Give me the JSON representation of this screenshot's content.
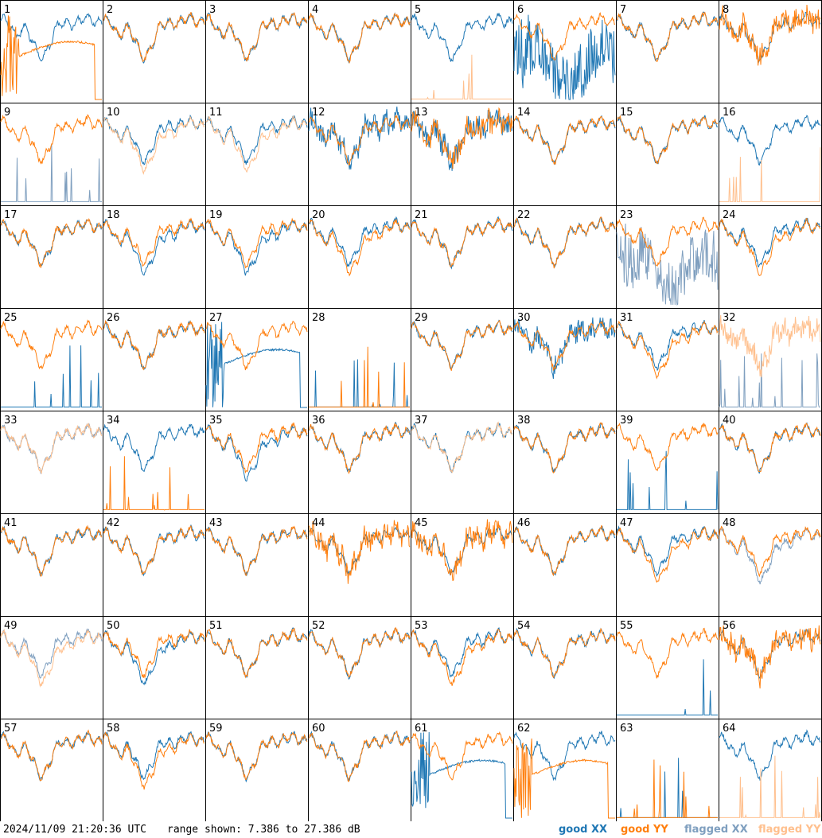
{
  "chart_data": {
    "type": "line",
    "panels": [
      {
        "label": "1",
        "xx": "good",
        "yy": "good",
        "xx_shape": "normal",
        "yy_shape": "spike_decay"
      },
      {
        "label": "2",
        "xx": "good",
        "yy": "good",
        "xx_shape": "normal",
        "yy_shape": "normal"
      },
      {
        "label": "3",
        "xx": "good",
        "yy": "good",
        "xx_shape": "normal",
        "yy_shape": "normal"
      },
      {
        "label": "4",
        "xx": "good",
        "yy": "good",
        "xx_shape": "normal",
        "yy_shape": "normal"
      },
      {
        "label": "5",
        "xx": "good",
        "yy": "flagged",
        "xx_shape": "normal",
        "yy_shape": "bottom_spikes"
      },
      {
        "label": "6",
        "xx": "good",
        "yy": "good",
        "xx_shape": "noisy_low",
        "yy_shape": "normal"
      },
      {
        "label": "7",
        "xx": "good",
        "yy": "good",
        "xx_shape": "normal",
        "yy_shape": "normal"
      },
      {
        "label": "8",
        "xx": "good",
        "yy": "good",
        "xx_shape": "normal",
        "yy_shape": "noisy"
      },
      {
        "label": "9",
        "xx": "flagged",
        "yy": "good",
        "xx_shape": "bottom_spikes",
        "yy_shape": "normal"
      },
      {
        "label": "10",
        "xx": "good",
        "yy": "flagged",
        "xx_shape": "normal",
        "yy_shape": "low"
      },
      {
        "label": "11",
        "xx": "good",
        "yy": "flagged",
        "xx_shape": "normal",
        "yy_shape": "low"
      },
      {
        "label": "12",
        "xx": "good",
        "yy": "good",
        "xx_shape": "noisy",
        "yy_shape": "normal"
      },
      {
        "label": "13",
        "xx": "good",
        "yy": "good",
        "xx_shape": "noisy",
        "yy_shape": "noisy"
      },
      {
        "label": "14",
        "xx": "good",
        "yy": "good",
        "xx_shape": "normal",
        "yy_shape": "normal"
      },
      {
        "label": "15",
        "xx": "good",
        "yy": "good",
        "xx_shape": "normal",
        "yy_shape": "normal"
      },
      {
        "label": "16",
        "xx": "good",
        "yy": "flagged",
        "xx_shape": "normal",
        "yy_shape": "bottom_spikes"
      },
      {
        "label": "17",
        "xx": "good",
        "yy": "good",
        "xx_shape": "normal",
        "yy_shape": "normal"
      },
      {
        "label": "18",
        "xx": "good",
        "yy": "good",
        "xx_shape": "low",
        "yy_shape": "normal"
      },
      {
        "label": "19",
        "xx": "good",
        "yy": "good",
        "xx_shape": "low",
        "yy_shape": "normal"
      },
      {
        "label": "20",
        "xx": "good",
        "yy": "good",
        "xx_shape": "normal",
        "yy_shape": "low"
      },
      {
        "label": "21",
        "xx": "good",
        "yy": "good",
        "xx_shape": "normal",
        "yy_shape": "normal"
      },
      {
        "label": "22",
        "xx": "good",
        "yy": "good",
        "xx_shape": "normal",
        "yy_shape": "normal"
      },
      {
        "label": "23",
        "xx": "flagged",
        "yy": "good",
        "xx_shape": "noisy_low",
        "yy_shape": "normal"
      },
      {
        "label": "24",
        "xx": "good",
        "yy": "good",
        "xx_shape": "normal",
        "yy_shape": "low"
      },
      {
        "label": "25",
        "xx": "good",
        "yy": "good",
        "xx_shape": "bottom_spikes",
        "yy_shape": "normal"
      },
      {
        "label": "26",
        "xx": "good",
        "yy": "good",
        "xx_shape": "normal",
        "yy_shape": "normal"
      },
      {
        "label": "27",
        "xx": "good",
        "yy": "good",
        "xx_shape": "spike_decay",
        "yy_shape": "normal"
      },
      {
        "label": "28",
        "xx": "good",
        "yy": "good",
        "xx_shape": "bottom_spikes",
        "yy_shape": "bottom_spikes"
      },
      {
        "label": "29",
        "xx": "good",
        "yy": "good",
        "xx_shape": "normal",
        "yy_shape": "normal"
      },
      {
        "label": "30",
        "xx": "good",
        "yy": "good",
        "xx_shape": "noisy",
        "yy_shape": "normal"
      },
      {
        "label": "31",
        "xx": "good",
        "yy": "good",
        "xx_shape": "normal",
        "yy_shape": "low"
      },
      {
        "label": "32",
        "xx": "flagged",
        "yy": "flagged",
        "xx_shape": "bottom_spikes",
        "yy_shape": "noisy"
      },
      {
        "label": "33",
        "xx": "flagged",
        "yy": "flagged",
        "xx_shape": "normal",
        "yy_shape": "normal"
      },
      {
        "label": "34",
        "xx": "good",
        "yy": "good",
        "xx_shape": "normal",
        "yy_shape": "bottom_spikes"
      },
      {
        "label": "35",
        "xx": "good",
        "yy": "good",
        "xx_shape": "low",
        "yy_shape": "normal"
      },
      {
        "label": "36",
        "xx": "good",
        "yy": "good",
        "xx_shape": "normal",
        "yy_shape": "normal"
      },
      {
        "label": "37",
        "xx": "good",
        "yy": "flagged",
        "xx_shape": "normal",
        "yy_shape": "normal"
      },
      {
        "label": "38",
        "xx": "good",
        "yy": "good",
        "xx_shape": "normal",
        "yy_shape": "normal"
      },
      {
        "label": "39",
        "xx": "good",
        "yy": "good",
        "xx_shape": "bottom_spikes",
        "yy_shape": "normal"
      },
      {
        "label": "40",
        "xx": "good",
        "yy": "good",
        "xx_shape": "normal",
        "yy_shape": "normal"
      },
      {
        "label": "41",
        "xx": "good",
        "yy": "good",
        "xx_shape": "normal",
        "yy_shape": "normal"
      },
      {
        "label": "42",
        "xx": "good",
        "yy": "good",
        "xx_shape": "normal",
        "yy_shape": "normal"
      },
      {
        "label": "43",
        "xx": "good",
        "yy": "good",
        "xx_shape": "normal",
        "yy_shape": "normal"
      },
      {
        "label": "44",
        "xx": "good",
        "yy": "good",
        "xx_shape": "normal",
        "yy_shape": "noisy"
      },
      {
        "label": "45",
        "xx": "good",
        "yy": "good",
        "xx_shape": "normal",
        "yy_shape": "noisy"
      },
      {
        "label": "46",
        "xx": "good",
        "yy": "good",
        "xx_shape": "normal",
        "yy_shape": "normal"
      },
      {
        "label": "47",
        "xx": "good",
        "yy": "good",
        "xx_shape": "normal",
        "yy_shape": "low"
      },
      {
        "label": "48",
        "xx": "flagged",
        "yy": "good",
        "xx_shape": "low",
        "yy_shape": "normal"
      },
      {
        "label": "49",
        "xx": "flagged",
        "yy": "flagged",
        "xx_shape": "normal",
        "yy_shape": "low"
      },
      {
        "label": "50",
        "xx": "good",
        "yy": "good",
        "xx_shape": "low",
        "yy_shape": "normal"
      },
      {
        "label": "51",
        "xx": "good",
        "yy": "good",
        "xx_shape": "normal",
        "yy_shape": "normal"
      },
      {
        "label": "52",
        "xx": "good",
        "yy": "good",
        "xx_shape": "normal",
        "yy_shape": "normal"
      },
      {
        "label": "53",
        "xx": "good",
        "yy": "good",
        "xx_shape": "normal",
        "yy_shape": "low"
      },
      {
        "label": "54",
        "xx": "good",
        "yy": "good",
        "xx_shape": "normal",
        "yy_shape": "normal"
      },
      {
        "label": "55",
        "xx": "good",
        "yy": "good",
        "xx_shape": "bottom_spikes",
        "yy_shape": "normal"
      },
      {
        "label": "56",
        "xx": "good",
        "yy": "good",
        "xx_shape": "normal",
        "yy_shape": "noisy"
      },
      {
        "label": "57",
        "xx": "good",
        "yy": "good",
        "xx_shape": "normal",
        "yy_shape": "normal"
      },
      {
        "label": "58",
        "xx": "good",
        "yy": "good",
        "xx_shape": "normal",
        "yy_shape": "low"
      },
      {
        "label": "59",
        "xx": "good",
        "yy": "good",
        "xx_shape": "normal",
        "yy_shape": "normal"
      },
      {
        "label": "60",
        "xx": "good",
        "yy": "good",
        "xx_shape": "normal",
        "yy_shape": "normal"
      },
      {
        "label": "61",
        "xx": "good",
        "yy": "good",
        "xx_shape": "spike_decay",
        "yy_shape": "normal"
      },
      {
        "label": "62",
        "xx": "good",
        "yy": "good",
        "xx_shape": "normal",
        "yy_shape": "spike_decay"
      },
      {
        "label": "63",
        "xx": "good",
        "yy": "good",
        "xx_shape": "bottom_spikes",
        "yy_shape": "bottom_spikes"
      },
      {
        "label": "64",
        "xx": "good",
        "yy": "flagged",
        "xx_shape": "normal",
        "yy_shape": "bottom_spikes"
      }
    ],
    "y_range_db": [
      7.386,
      27.386
    ],
    "grid": "8x8",
    "colors": {
      "good_xx": "#1f77b4",
      "good_yy": "#ff7f0e",
      "flagged_xx": "#7f9fbf",
      "flagged_yy": "#ffc08e"
    }
  },
  "footer": {
    "timestamp": "2024/11/09 21:20:36 UTC",
    "range": "range shown: 7.386 to 27.386 dB",
    "legend": {
      "good_xx": "good XX",
      "good_yy": "good YY",
      "flagged_xx": "flagged XX",
      "flagged_yy": "flagged YY"
    }
  }
}
